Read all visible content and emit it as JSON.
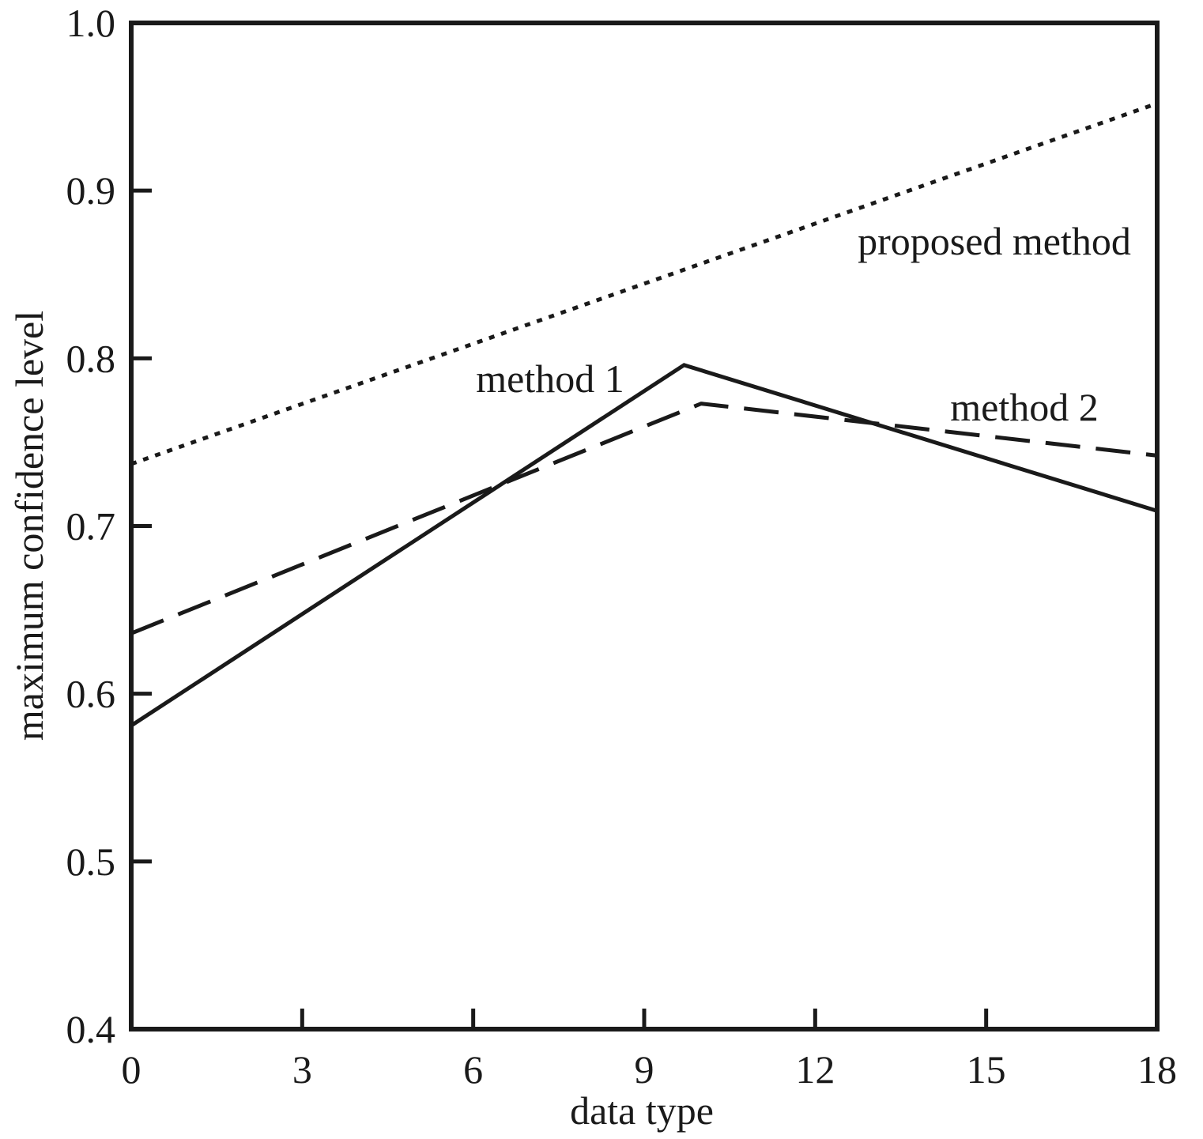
{
  "chart_data": {
    "type": "line",
    "title": "",
    "xlabel": "data type",
    "ylabel": "maximum confidence level",
    "xlim": [
      0,
      18
    ],
    "ylim": [
      0.4,
      1.0
    ],
    "xticks": [
      0,
      3,
      6,
      9,
      12,
      15,
      18
    ],
    "yticks": [
      0.4,
      0.5,
      0.6,
      0.7,
      0.8,
      0.9,
      1.0
    ],
    "xtick_labels": [
      "0",
      "3",
      "6",
      "9",
      "12",
      "15",
      "18"
    ],
    "ytick_labels": [
      "0.4",
      "0.5",
      "0.6",
      "0.7",
      "0.8",
      "0.9",
      "1.0"
    ],
    "grid": false,
    "legend": "none",
    "series": [
      {
        "name": "proposed method",
        "style": "dotted",
        "color": "#1a1a1a",
        "x": [
          0,
          18
        ],
        "y": [
          0.737,
          0.952
        ]
      },
      {
        "name": "method 1",
        "style": "solid",
        "color": "#1a1a1a",
        "x": [
          0,
          9.7,
          18
        ],
        "y": [
          0.581,
          0.796,
          0.709
        ]
      },
      {
        "name": "method 2",
        "style": "dashed",
        "color": "#1a1a1a",
        "x": [
          0,
          10,
          18
        ],
        "y": [
          0.636,
          0.773,
          0.742
        ]
      }
    ]
  }
}
